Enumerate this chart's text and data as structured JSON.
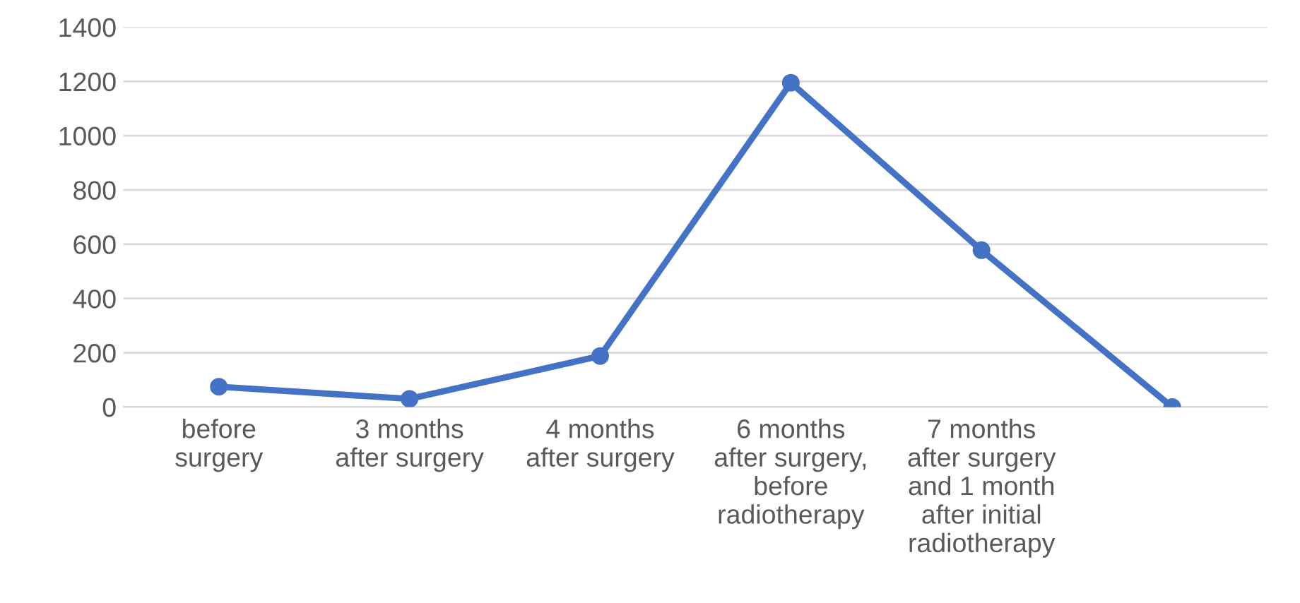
{
  "chart_data": {
    "type": "line",
    "categories": [
      "before\nsurgery",
      "3 months\nafter surgery",
      "4 months\nafter surgery",
      "6 months\nafter surgery,\nbefore\nradiotherapy",
      "7 months\nafter surgery\nand 1 month\nafter initial\nradiotherapy",
      null
    ],
    "series": [
      {
        "color": "#4472c4",
        "values": [
          75,
          30,
          188,
          1195,
          578,
          0
        ]
      }
    ],
    "ylim": [
      0,
      1400
    ],
    "yticks": [
      0,
      200,
      400,
      600,
      800,
      1000,
      1200,
      1400
    ],
    "grid": "y",
    "marker": "circle",
    "line_style": "solid"
  }
}
